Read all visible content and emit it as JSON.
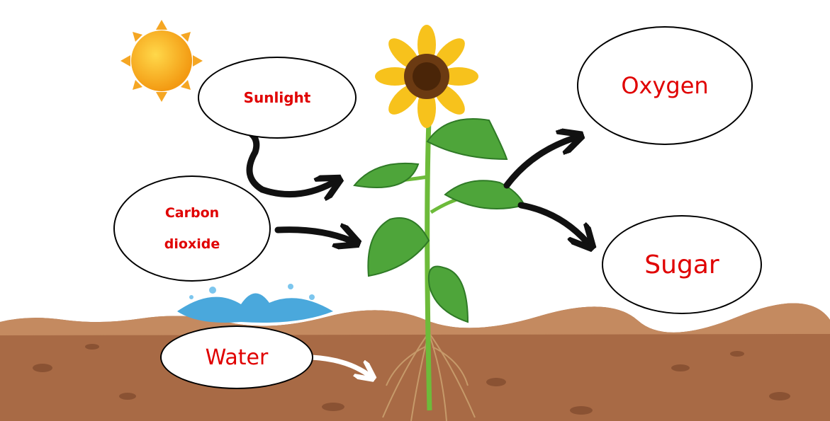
{
  "nodes": [
    {
      "label": "Sunlight"
    },
    {
      "label": "Carbon dioxide"
    },
    {
      "label": "Water"
    },
    {
      "label": "Oxygen"
    },
    {
      "label": "Sugar"
    }
  ]
}
